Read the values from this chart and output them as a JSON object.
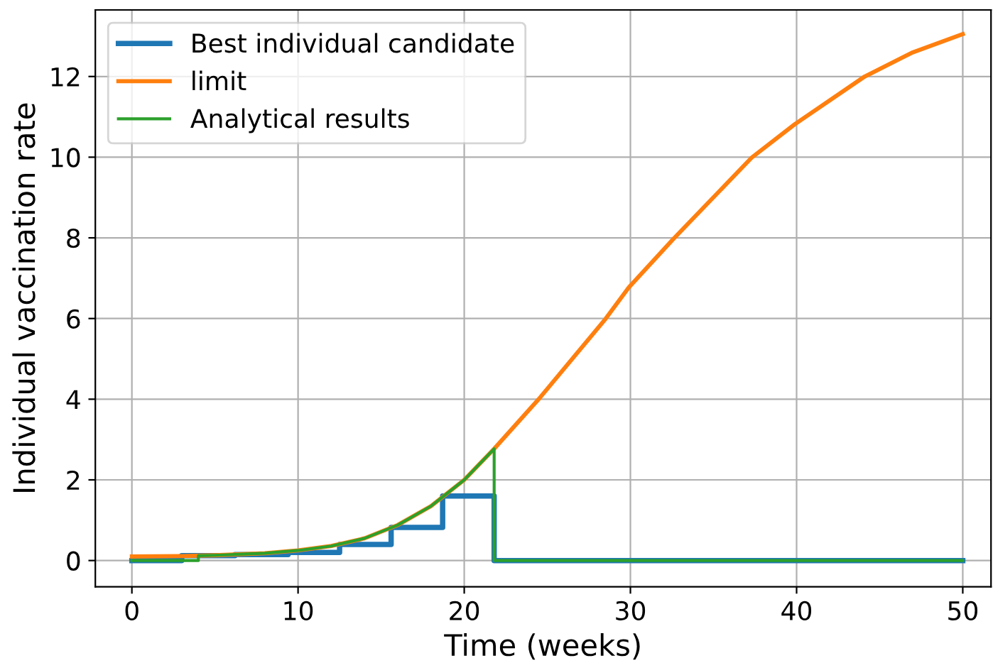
{
  "chart_data": {
    "type": "line",
    "xlabel": "Time (weeks)",
    "ylabel": "Individual vaccination rate",
    "xlim": [
      -2.2,
      51.7
    ],
    "ylim": [
      -0.65,
      13.65
    ],
    "xticks": [
      0,
      10,
      20,
      30,
      40,
      50
    ],
    "yticks": [
      0,
      2,
      4,
      6,
      8,
      10,
      12
    ],
    "grid": true,
    "legend": "top left",
    "series": [
      {
        "name": "Best individual candidate",
        "color": "#1f77b4",
        "type": "step",
        "x": [
          0,
          3.0,
          6.2,
          9.4,
          12.5,
          15.6,
          18.7,
          21.8,
          21.8,
          50
        ],
        "values": [
          0,
          0.12,
          0.15,
          0.2,
          0.4,
          0.82,
          1.6,
          1.6,
          0,
          0
        ]
      },
      {
        "name": "limit",
        "color": "#ff7f0e",
        "x": [
          0,
          3,
          5,
          8,
          10,
          12,
          14,
          16,
          18,
          20,
          21.8,
          24.5,
          28.5,
          29.9,
          32.6,
          37.3,
          39.9,
          44.1,
          47,
          50
        ],
        "values": [
          0.1,
          0.11,
          0.13,
          0.18,
          0.25,
          0.36,
          0.55,
          0.88,
          1.35,
          2.0,
          2.77,
          4.01,
          5.99,
          6.77,
          7.98,
          9.99,
          10.82,
          12.0,
          12.6,
          13.05
        ]
      },
      {
        "name": "Analytical results",
        "color": "#2ca02c",
        "x": [
          0,
          4,
          4,
          5,
          8,
          10,
          12,
          14,
          16,
          18,
          20,
          21.8,
          21.8,
          50
        ],
        "values": [
          0,
          0,
          0.12,
          0.13,
          0.18,
          0.25,
          0.36,
          0.55,
          0.88,
          1.35,
          2.0,
          2.77,
          0,
          0
        ]
      }
    ]
  }
}
